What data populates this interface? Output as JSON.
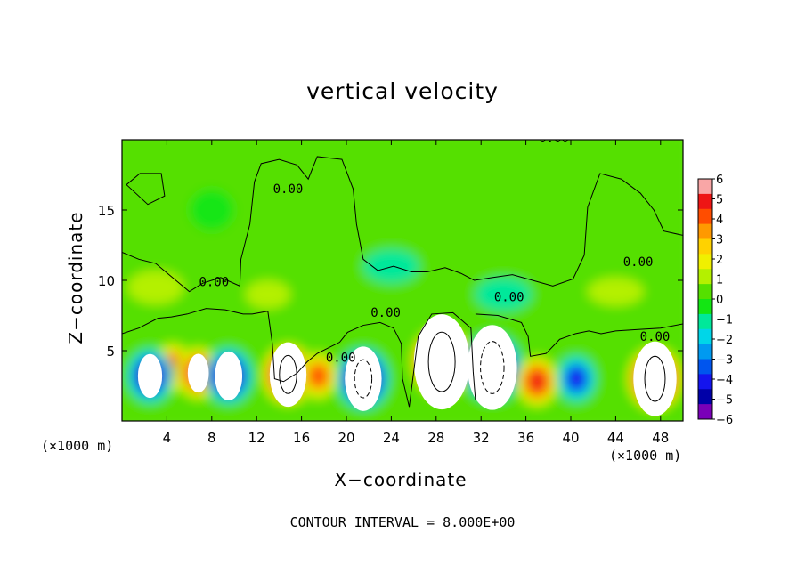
{
  "chart_data": {
    "type": "heatmap",
    "title": "vertical velocity",
    "xlabel": "X−coordinate",
    "ylabel": "Z−coordinate",
    "x_unit": "(×1000 m)",
    "xlim": [
      0,
      50
    ],
    "ylim": [
      0,
      20
    ],
    "x_ticks": [
      4,
      8,
      12,
      16,
      20,
      24,
      28,
      32,
      36,
      40,
      44,
      48
    ],
    "y_ticks": [
      5,
      10,
      15
    ],
    "colorbar": {
      "min": -6,
      "max": 6,
      "ticks": [
        "6",
        "5",
        "4",
        "3",
        "2",
        "1",
        "0",
        "−1",
        "−2",
        "−3",
        "−4",
        "−5",
        "−6"
      ],
      "colors": [
        "#f9a6a6",
        "#ee1515",
        "#ff4d00",
        "#ff9900",
        "#ffd200",
        "#f0f000",
        "#b4f000",
        "#55e000",
        "#13e613",
        "#00e89a",
        "#00d6e8",
        "#009af0",
        "#0055ee",
        "#1414ee",
        "#0000a8",
        "#7a00b8"
      ]
    },
    "contour_interval": 8.0,
    "contour_labels": [
      "0.00",
      "0.00",
      "0.00",
      "0.00",
      "0.00",
      "0.00",
      "0.00",
      "0.00"
    ],
    "features": [
      {
        "kind": "updraft",
        "x": 4.5,
        "z": 3.8,
        "peak": 5.5
      },
      {
        "kind": "downdraft",
        "x": 2.5,
        "z": 3.2,
        "peak": -7
      },
      {
        "kind": "updraft",
        "x": 6.8,
        "z": 3.4,
        "peak": 6.5
      },
      {
        "kind": "downdraft",
        "x": 9.5,
        "z": 3.2,
        "peak": -7.5
      },
      {
        "kind": "updraft",
        "x": 14.8,
        "z": 3.3,
        "peak": 9
      },
      {
        "kind": "updraft",
        "x": 17.5,
        "z": 3.2,
        "peak": 5
      },
      {
        "kind": "downdraft",
        "x": 21.5,
        "z": 3.0,
        "peak": -9
      },
      {
        "kind": "updraft",
        "x": 28.5,
        "z": 4.2,
        "peak": 12
      },
      {
        "kind": "downdraft",
        "x": 33.0,
        "z": 3.8,
        "peak": -11
      },
      {
        "kind": "updraft",
        "x": 37.0,
        "z": 2.8,
        "peak": 6
      },
      {
        "kind": "downdraft",
        "x": 40.5,
        "z": 3.0,
        "peak": -5
      },
      {
        "kind": "updraft",
        "x": 47.5,
        "z": 3.0,
        "peak": 10
      }
    ]
  },
  "footer": {
    "contour_text": "CONTOUR INTERVAL =  8.000E+00"
  }
}
